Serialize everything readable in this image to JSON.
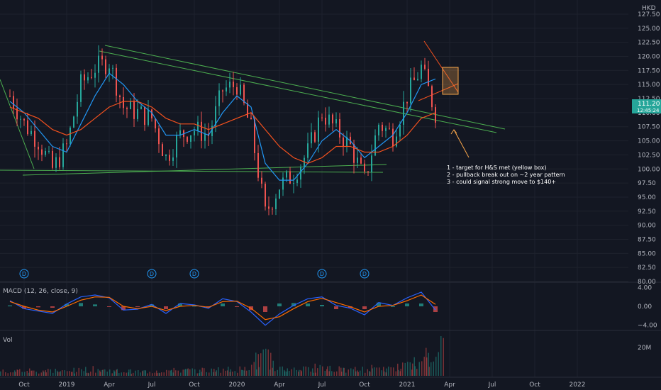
{
  "chart_data": {
    "type": "line",
    "currency": "HKD",
    "ylim": [
      80,
      127.5
    ],
    "y_ticks": [
      "127.50",
      "125.00",
      "122.50",
      "120.00",
      "117.50",
      "115.00",
      "112.50",
      "110.00",
      "107.50",
      "105.00",
      "102.50",
      "100.00",
      "97.50",
      "95.00",
      "92.50",
      "90.00",
      "87.50",
      "85.00",
      "82.50",
      "80.00"
    ],
    "last_price": "111.20",
    "last_price_sub": "12:45:24",
    "x_ticks": [
      "Oct",
      "2019",
      "Apr",
      "Jul",
      "Oct",
      "2020",
      "Apr",
      "Jul",
      "Oct",
      "2021",
      "Apr",
      "Jul",
      "Oct",
      "2022"
    ],
    "x_range": [
      "2018-09",
      "2022-04"
    ],
    "series": [
      {
        "name": "price",
        "x": [
          "2018-09",
          "2018-10",
          "2018-11",
          "2018-12",
          "2019-01",
          "2019-02",
          "2019-03",
          "2019-04",
          "2019-05",
          "2019-06",
          "2019-07",
          "2019-08",
          "2019-09",
          "2019-10",
          "2019-11",
          "2019-12",
          "2020-01",
          "2020-02",
          "2020-03",
          "2020-04",
          "2020-05",
          "2020-06",
          "2020-07",
          "2020-08",
          "2020-09",
          "2020-10",
          "2020-11",
          "2020-12",
          "2021-01",
          "2021-02",
          "2021-03"
        ],
        "values": [
          113,
          108,
          105,
          100,
          104,
          115,
          118,
          119,
          111,
          110,
          109,
          102,
          106,
          107,
          106,
          114,
          115,
          107,
          92,
          97,
          99,
          103,
          110,
          107,
          104,
          98,
          108,
          106,
          113,
          118,
          110
        ]
      },
      {
        "name": "short-ma",
        "values": [
          112,
          110,
          107,
          104,
          103,
          108,
          113,
          117,
          115,
          112,
          110,
          106,
          106,
          107,
          106,
          110,
          113,
          111,
          101,
          98,
          98,
          101,
          105,
          107,
          105,
          102,
          104,
          106,
          110,
          115,
          116
        ]
      },
      {
        "name": "long-ma",
        "values": [
          111,
          110,
          109,
          107,
          106,
          107,
          109,
          111,
          112,
          112,
          111,
          109,
          108,
          108,
          107,
          108,
          109,
          110,
          107,
          104,
          102,
          101,
          102,
          104,
          104,
          103,
          103,
          104,
          106,
          109,
          110
        ]
      }
    ],
    "macd": {
      "label": "MACD (12, 26, close, 9)",
      "y_ticks": [
        "4.00",
        "0.00",
        "−4.00"
      ],
      "ylim": [
        -4.5,
        4.5
      ],
      "values": [
        1.2,
        -0.5,
        -1.0,
        -1.5,
        0.5,
        2.0,
        2.4,
        1.8,
        -0.8,
        -0.6,
        0.4,
        -1.5,
        0.6,
        0.3,
        -0.4,
        1.6,
        1.0,
        -1.2,
        -4.0,
        -1.6,
        0.2,
        1.6,
        2.0,
        0.2,
        -0.4,
        -1.8,
        0.8,
        0.2,
        1.8,
        3.0,
        -0.8
      ],
      "signal": [
        1.0,
        0.0,
        -0.8,
        -1.2,
        0.0,
        1.3,
        2.0,
        1.9,
        0.0,
        -0.5,
        0.0,
        -0.9,
        0.0,
        0.2,
        -0.2,
        1.0,
        1.1,
        -0.4,
        -2.8,
        -2.2,
        -0.5,
        1.0,
        1.7,
        0.8,
        -0.1,
        -1.2,
        0.0,
        0.2,
        1.2,
        2.4,
        0.4
      ]
    },
    "volume": {
      "label": "Vol",
      "y_ticks": [
        "20M"
      ],
      "ylim": [
        0,
        30
      ],
      "values": [
        4,
        5,
        4,
        5,
        4,
        5,
        6,
        5,
        4,
        4,
        4,
        5,
        5,
        5,
        5,
        6,
        6,
        9,
        17,
        7,
        6,
        6,
        9,
        6,
        5,
        6,
        7,
        6,
        9,
        12,
        26
      ]
    },
    "annotations": [
      "1 - target for H&S met (yellow box)",
      "2 - pullback break out on ~2 year pattern",
      "3 - could signal strong move to $140+"
    ],
    "dividend_marker": "D",
    "dividend_dates": [
      "2018-10",
      "2019-07",
      "2019-10",
      "2020-07",
      "2020-10"
    ],
    "colors": {
      "background": "#131722",
      "up": "#26a69a",
      "down": "#ef5350",
      "short_ma": "#2196f3",
      "long_ma": "#f4511e",
      "trendline": "#4caf50",
      "annotation_box": "#f7a54a",
      "macd_line": "#2962ff",
      "signal_line": "#ff6d00",
      "last_price_tag": "#26a69a"
    }
  }
}
